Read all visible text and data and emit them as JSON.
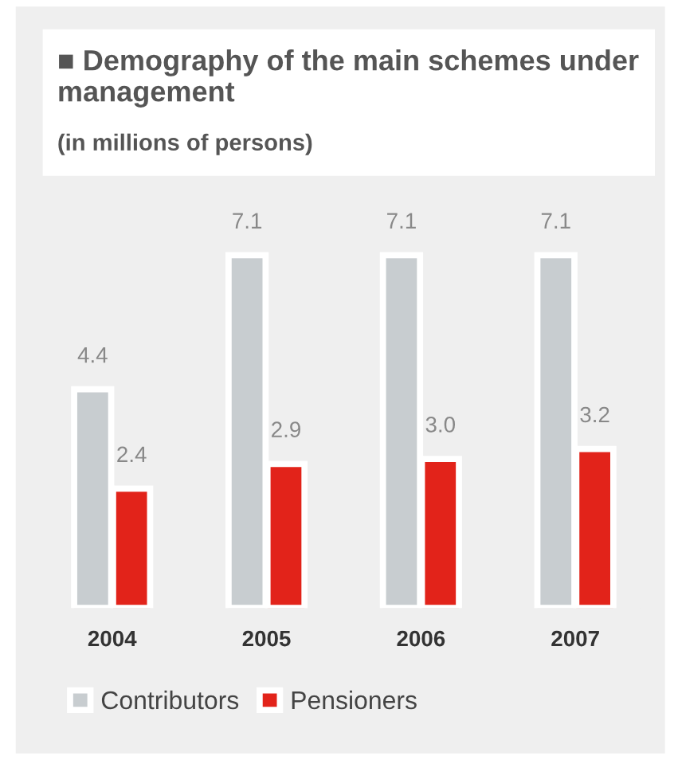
{
  "chart_data": {
    "type": "bar",
    "title": "■ Demography of the main schemes under management",
    "subtitle": "(in millions of persons)",
    "categories": [
      "2004",
      "2005",
      "2006",
      "2007"
    ],
    "series": [
      {
        "name": "Contributors",
        "color": "#c8cdd0",
        "values": [
          4.4,
          7.1,
          7.1,
          7.1
        ],
        "value_labels": [
          "4.4",
          "7.1",
          "7.1",
          "7.1"
        ]
      },
      {
        "name": "Pensioners",
        "color": "#e2231a",
        "values": [
          2.4,
          2.9,
          3.0,
          3.2
        ],
        "value_labels": [
          "2.4",
          "2.9",
          "3.0",
          "3.2"
        ]
      }
    ],
    "legend": "bottom left",
    "grid": false
  }
}
